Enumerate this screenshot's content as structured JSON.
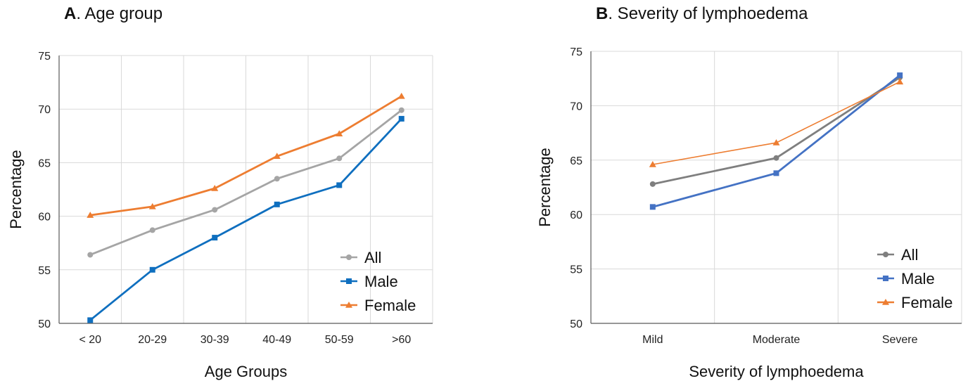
{
  "charts": [
    {
      "panel_letter": "A",
      "panel_title": ". Age group",
      "chart_data": {
        "type": "line",
        "categories": [
          "< 20",
          "20-29",
          "30-39",
          "40-49",
          "50-59",
          ">60"
        ],
        "series": [
          {
            "name": "All",
            "values": [
              56.4,
              58.7,
              60.6,
              63.5,
              65.4,
              69.9
            ],
            "color": "#a5a5a5",
            "marker": "circle"
          },
          {
            "name": "Male",
            "values": [
              50.3,
              55.0,
              58.0,
              61.1,
              62.9,
              69.1
            ],
            "color": "#0f6fbf",
            "marker": "square"
          },
          {
            "name": "Female",
            "values": [
              60.1,
              60.9,
              62.6,
              65.6,
              67.7,
              71.2
            ],
            "color": "#ed7d31",
            "marker": "triangle"
          }
        ],
        "xlabel": "Age Groups",
        "ylabel": "Percentage",
        "ylim": [
          50,
          75
        ],
        "yticks": [
          50,
          55,
          60,
          65,
          70,
          75
        ],
        "grid": true,
        "legend": "bottom-right"
      }
    },
    {
      "panel_letter": "B",
      "panel_title": ". Severity of lymphoedema",
      "chart_data": {
        "type": "line",
        "categories": [
          "Mild",
          "Moderate",
          "Severe"
        ],
        "series": [
          {
            "name": "All",
            "values": [
              62.8,
              65.2,
              72.6
            ],
            "color": "#7f7f7f",
            "marker": "circle"
          },
          {
            "name": "Male",
            "values": [
              60.7,
              63.8,
              72.8
            ],
            "color": "#4472c4",
            "marker": "square"
          },
          {
            "name": "Female",
            "values": [
              64.6,
              66.6,
              72.2
            ],
            "color": "#ed7d31",
            "marker": "triangle"
          }
        ],
        "xlabel": "Severity of lymphoedema",
        "ylabel": "Percentage",
        "ylim": [
          50,
          75
        ],
        "yticks": [
          50,
          55,
          60,
          65,
          70,
          75
        ],
        "grid": true,
        "legend": "bottom-right"
      }
    }
  ]
}
